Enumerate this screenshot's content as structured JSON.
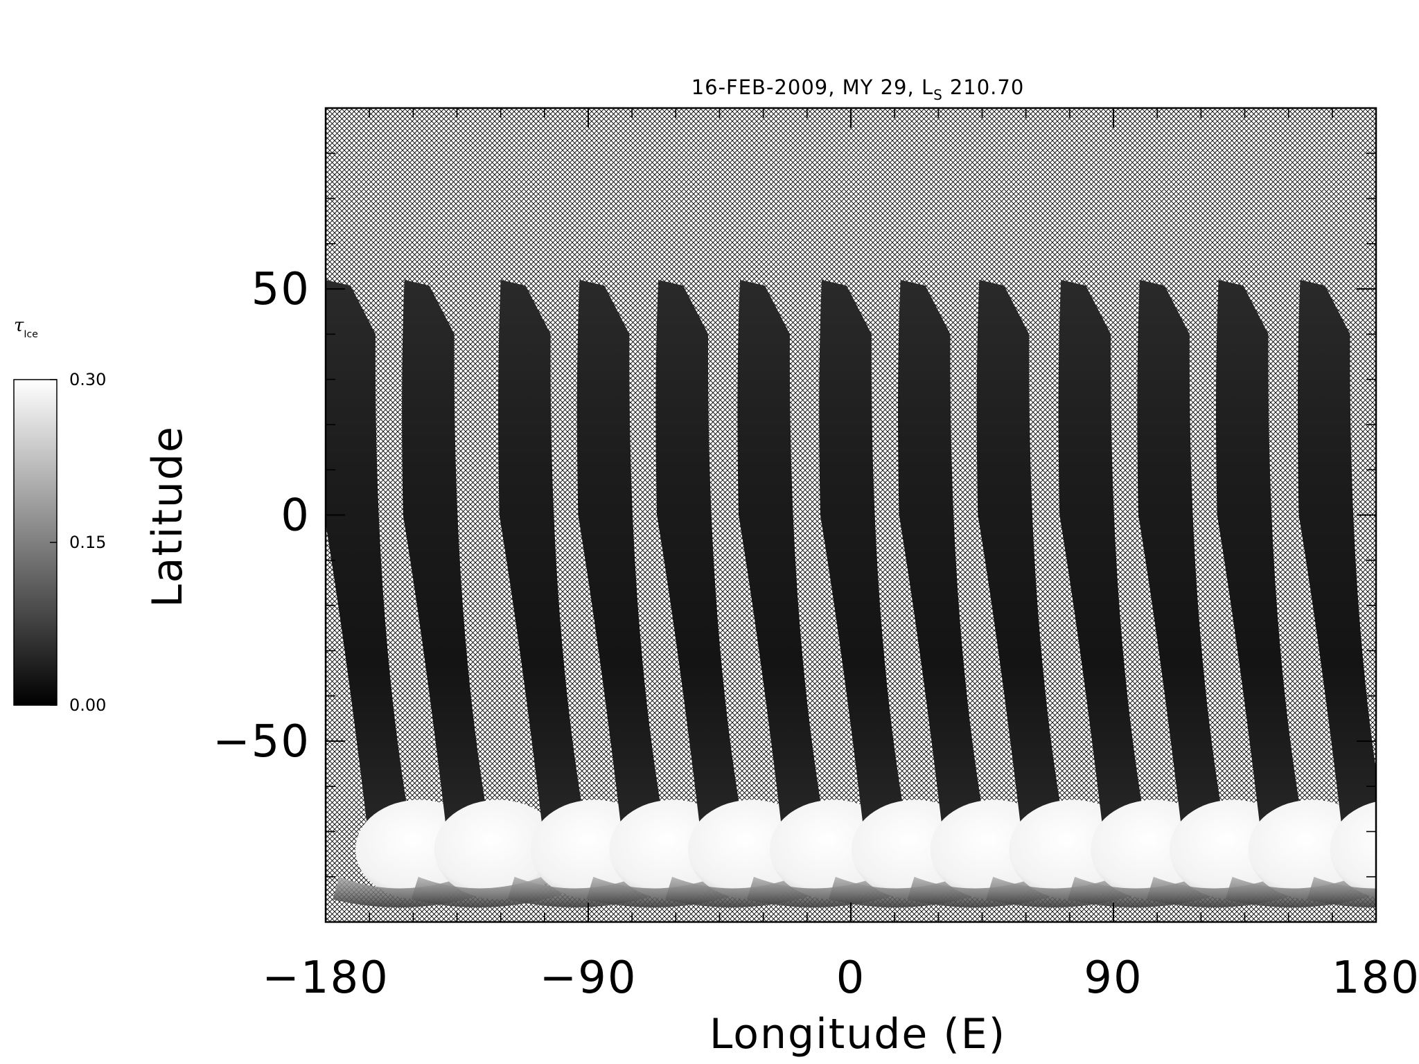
{
  "chart_data": {
    "type": "heatmap",
    "title": "16-FEB-2009, MY 29,  L",
    "title_subscript": "S",
    "title_value": "210.70",
    "xlabel": "Longitude (E)",
    "ylabel": "Latitude",
    "xlim": [
      -180,
      180
    ],
    "ylim": [
      -90,
      90
    ],
    "x_ticks": [
      {
        "value": -180,
        "label": "−180"
      },
      {
        "value": -90,
        "label": "−90"
      },
      {
        "value": 0,
        "label": "0"
      },
      {
        "value": 90,
        "label": "90"
      },
      {
        "value": 180,
        "label": "180"
      }
    ],
    "y_ticks": [
      {
        "value": 50,
        "label": "50"
      },
      {
        "value": 0,
        "label": "0"
      },
      {
        "value": -50,
        "label": "−50"
      }
    ],
    "colorbar": {
      "title": "τ",
      "title_subscript": "Ice",
      "min": 0.0,
      "max": 0.3,
      "tick_labels": [
        {
          "value": 0.3,
          "label": "0.30"
        },
        {
          "value": 0.15,
          "label": "0.15"
        },
        {
          "value": 0.0,
          "label": "0.00"
        }
      ],
      "colormap": "grayscale, black (0.00) to white (0.30)"
    },
    "swaths": [
      {
        "lon_top": -180,
        "lat_top": 52
      },
      {
        "lon_top": -153,
        "lat_top": 52
      },
      {
        "lon_top": -120,
        "lat_top": 52
      },
      {
        "lon_top": -93,
        "lat_top": 52
      },
      {
        "lon_top": -66,
        "lat_top": 52
      },
      {
        "lon_top": -38,
        "lat_top": 52
      },
      {
        "lon_top": -10,
        "lat_top": 52
      },
      {
        "lon_top": 17,
        "lat_top": 52
      },
      {
        "lon_top": 44,
        "lat_top": 52
      },
      {
        "lon_top": 72,
        "lat_top": 52
      },
      {
        "lon_top": 99,
        "lat_top": 52
      },
      {
        "lon_top": 126,
        "lat_top": 52
      },
      {
        "lon_top": 154,
        "lat_top": 52
      }
    ],
    "no_data_fill": "cross-hatch",
    "grid": false
  }
}
